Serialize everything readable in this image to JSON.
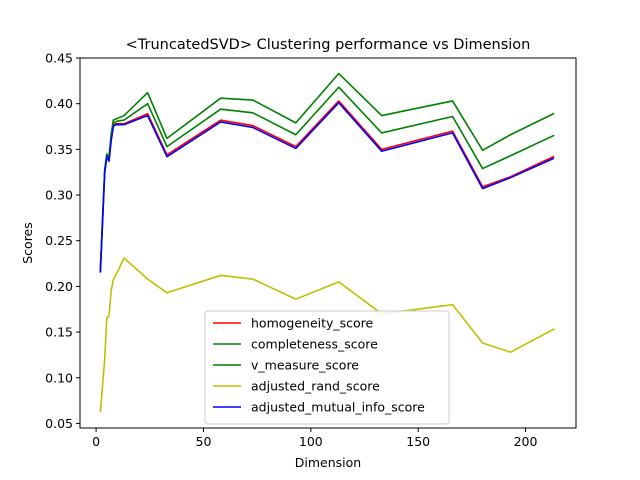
{
  "chart_data": {
    "type": "line",
    "title": "<TruncatedSVD> Clustering performance vs Dimension",
    "xlabel": "Dimension",
    "ylabel": "Scores",
    "xlim": [
      -7.5,
      223.5
    ],
    "ylim": [
      0.045,
      0.45
    ],
    "xticks": [
      0,
      50,
      100,
      150,
      200
    ],
    "yticks": [
      0.05,
      0.1,
      0.15,
      0.2,
      0.25,
      0.3,
      0.35,
      0.4,
      0.45
    ],
    "ytick_labels": [
      "0.05",
      "0.10",
      "0.15",
      "0.20",
      "0.25",
      "0.30",
      "0.35",
      "0.40",
      "0.45"
    ],
    "legend_position": "lower center",
    "grid": false,
    "x": [
      2,
      4,
      5,
      6,
      7,
      8,
      9,
      10,
      13,
      24,
      33,
      58,
      73,
      93,
      113,
      133,
      166,
      180,
      193,
      213
    ],
    "series": [
      {
        "name": "homogeneity_score",
        "color": "#ff0000",
        "values": [
          0.217,
          0.325,
          0.343,
          0.338,
          0.36,
          0.376,
          0.378,
          0.378,
          0.378,
          0.389,
          0.344,
          0.382,
          0.376,
          0.353,
          0.403,
          0.35,
          0.37,
          0.309,
          0.32,
          0.342
        ]
      },
      {
        "name": "completeness_score",
        "color": "#008000",
        "values": [
          0.22,
          0.328,
          0.345,
          0.341,
          0.366,
          0.382,
          0.383,
          0.384,
          0.387,
          0.412,
          0.362,
          0.406,
          0.404,
          0.379,
          0.433,
          0.387,
          0.403,
          0.349,
          0.366,
          0.389
        ]
      },
      {
        "name": "v_measure_score",
        "color": "#008000",
        "values": [
          0.219,
          0.326,
          0.344,
          0.339,
          0.363,
          0.379,
          0.38,
          0.381,
          0.382,
          0.4,
          0.353,
          0.394,
          0.39,
          0.366,
          0.418,
          0.368,
          0.386,
          0.329,
          0.343,
          0.365
        ]
      },
      {
        "name": "adjusted_rand_score",
        "color": "#bfbf00",
        "values": [
          0.063,
          0.12,
          0.166,
          0.167,
          0.195,
          0.207,
          0.212,
          0.216,
          0.231,
          0.208,
          0.193,
          0.212,
          0.208,
          0.186,
          0.205,
          0.17,
          0.18,
          0.138,
          0.128,
          0.153
        ]
      },
      {
        "name": "adjusted_mutual_info_score",
        "color": "#0000ff",
        "values": [
          0.216,
          0.324,
          0.342,
          0.337,
          0.359,
          0.375,
          0.377,
          0.377,
          0.377,
          0.387,
          0.342,
          0.38,
          0.374,
          0.351,
          0.401,
          0.348,
          0.368,
          0.307,
          0.319,
          0.34
        ]
      }
    ]
  }
}
